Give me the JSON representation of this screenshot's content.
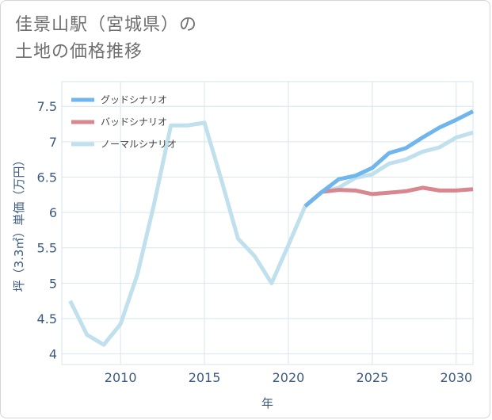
{
  "title": {
    "line1": "佳景山駅（宮城県）の",
    "line2": "土地の価格推移"
  },
  "chart_data": {
    "type": "line",
    "xlabel": "年",
    "ylabel": "坪（3.3㎡）単価（万円）",
    "xlim": [
      2006.5,
      2031
    ],
    "ylim": [
      3.85,
      7.85
    ],
    "xticks": [
      2010,
      2015,
      2020,
      2025,
      2030
    ],
    "yticks": [
      4,
      4.5,
      5,
      5.5,
      6,
      6.5,
      7,
      7.5
    ],
    "grid": true,
    "legend_position": "top-left",
    "series": [
      {
        "name": "グッドシナリオ",
        "color": "#6fb6ee",
        "x": [
          2021,
          2022,
          2023,
          2024,
          2025,
          2026,
          2027,
          2028,
          2029,
          2030,
          2031
        ],
        "values": [
          6.09,
          6.29,
          6.47,
          6.52,
          6.63,
          6.84,
          6.91,
          7.06,
          7.2,
          7.31,
          7.43
        ]
      },
      {
        "name": "バッドシナリオ",
        "color": "#d9878f",
        "x": [
          2021,
          2022,
          2023,
          2024,
          2025,
          2026,
          2027,
          2028,
          2029,
          2030,
          2031
        ],
        "values": [
          6.09,
          6.29,
          6.32,
          6.31,
          6.26,
          6.28,
          6.3,
          6.35,
          6.31,
          6.31,
          6.33
        ]
      },
      {
        "name": "ノーマルシナリオ",
        "color": "#bfe0ec",
        "x": [
          2007,
          2008,
          2009,
          2010,
          2011,
          2012,
          2013,
          2014,
          2015,
          2016,
          2017,
          2018,
          2019,
          2020,
          2021,
          2022,
          2023,
          2024,
          2025,
          2026,
          2027,
          2028,
          2029,
          2030,
          2031
        ],
        "values": [
          4.75,
          4.27,
          4.13,
          4.42,
          5.12,
          6.12,
          7.23,
          7.23,
          7.27,
          6.47,
          5.63,
          5.38,
          5.0,
          5.54,
          6.09,
          6.29,
          6.35,
          6.49,
          6.54,
          6.69,
          6.75,
          6.86,
          6.92,
          7.06,
          7.13
        ]
      }
    ]
  }
}
